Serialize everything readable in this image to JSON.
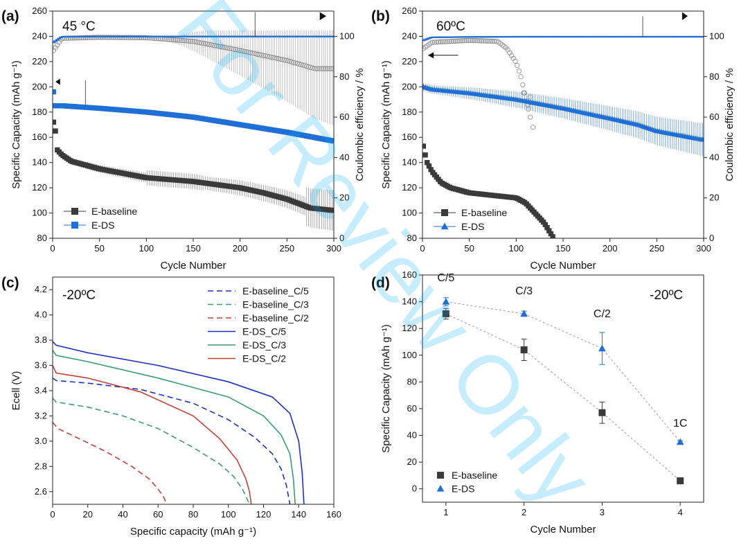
{
  "watermark": "For Review Only",
  "colors": {
    "baseline": "#3a3a3a",
    "ds": "#1f6fd6",
    "ds_light": "#5b9be8",
    "blue": "#1a2fc0",
    "green": "#3a9a70",
    "red": "#c0403a",
    "watermark": "#00aaff"
  },
  "chart_data": [
    {
      "panel": "(a)",
      "temperature": "45 °C",
      "type": "scatter",
      "xlabel": "Cycle Number",
      "ylabel": "Specific Capacity (mAh g⁻¹)",
      "ylabel_right": "Coulombic efficiency / %",
      "xlim": [
        0,
        300
      ],
      "ylim": [
        80,
        260
      ],
      "ylim_right": [
        0,
        112.5
      ],
      "xticks": [
        0,
        50,
        100,
        150,
        200,
        250,
        300
      ],
      "yticks": [
        80,
        100,
        120,
        140,
        160,
        180,
        200,
        220,
        240,
        260
      ],
      "yticks_right": [
        0,
        20,
        40,
        60,
        80,
        100
      ],
      "legend": "bottom-left",
      "series": [
        {
          "name": "E-baseline",
          "marker": "square",
          "color": "#3a3a3a",
          "capacity": {
            "x": [
              1,
              3,
              5,
              10,
              20,
              50,
              100,
              150,
              200,
              225,
              250,
              275,
              300
            ],
            "y": [
              172,
              165,
              150,
              146,
              141,
              135,
              128,
              125,
              120,
              116,
              111,
              104,
              102
            ]
          },
          "coulombic_efficiency": {
            "x": [
              1,
              10,
              50,
              100,
              150,
              200,
              250,
              280,
              300
            ],
            "y": [
              93,
              99,
              99.5,
              99.3,
              97.5,
              93,
              88,
              84,
              84
            ]
          }
        },
        {
          "name": "E-DS",
          "marker": "square",
          "color": "#1f6fd6",
          "capacity": {
            "x": [
              1,
              3,
              10,
              50,
              100,
              150,
              200,
              250,
              300
            ],
            "y": [
              196,
              185,
              185,
              183,
              180,
              176,
              170,
              164,
              157
            ]
          },
          "coulombic_efficiency": {
            "x": [
              1,
              10,
              50,
              100,
              150,
              200,
              250,
              300
            ],
            "y": [
              97,
              99.8,
              99.9,
              99.9,
              99.9,
              99.9,
              99.9,
              99.9
            ]
          }
        }
      ]
    },
    {
      "panel": "(b)",
      "temperature": "60ºC",
      "type": "scatter",
      "xlabel": "Cycle Number",
      "ylabel": "Specific Capacity (mAh g⁻¹)",
      "ylabel_right": "Coulombic efficiency / %",
      "xlim": [
        0,
        300
      ],
      "ylim": [
        80,
        260
      ],
      "ylim_right": [
        0,
        112.5
      ],
      "xticks": [
        0,
        50,
        100,
        150,
        200,
        250,
        300
      ],
      "yticks": [
        80,
        100,
        120,
        140,
        160,
        180,
        200,
        220,
        240,
        260
      ],
      "yticks_right": [
        0,
        20,
        40,
        60,
        80,
        100
      ],
      "legend": "bottom-left",
      "series": [
        {
          "name": "E-baseline",
          "marker": "square",
          "color": "#3a3a3a",
          "capacity": {
            "x": [
              1,
              3,
              5,
              10,
              20,
              30,
              50,
              75,
              100,
              110,
              120,
              130,
              140
            ],
            "y": [
              153,
              146,
              140,
              133,
              124,
              120,
              116,
              114,
              112,
              108,
              100,
              92,
              80
            ]
          },
          "coulombic_efficiency": {
            "x": [
              1,
              10,
              50,
              80,
              90,
              100,
              105,
              110,
              115
            ],
            "y": [
              94,
              97,
              98,
              97.5,
              94,
              87,
              80,
              70,
              60
            ]
          }
        },
        {
          "name": "E-DS",
          "marker": "triangle",
          "color": "#1f6fd6",
          "capacity": {
            "x": [
              1,
              10,
              50,
              100,
              150,
              200,
              230,
              250,
              300
            ],
            "y": [
              200,
              198,
              195,
              190,
              183,
              175,
              170,
              165,
              158
            ]
          },
          "coulombic_efficiency": {
            "x": [
              1,
              10,
              50,
              100,
              150,
              200,
              250,
              300
            ],
            "y": [
              98,
              99.5,
              99.7,
              99.8,
              99.8,
              99.8,
              99.8,
              99.8
            ]
          }
        }
      ]
    },
    {
      "panel": "(c)",
      "temperature": "-20ºC",
      "type": "line",
      "xlabel": "Specific capacity (mAh g⁻¹)",
      "ylabel": "Ecell  (V)",
      "xlim": [
        0,
        160
      ],
      "ylim": [
        2.5,
        4.3
      ],
      "xticks": [
        0,
        20,
        40,
        60,
        80,
        100,
        120,
        140,
        160
      ],
      "yticks": [
        2.6,
        2.8,
        3.0,
        3.2,
        3.4,
        3.6,
        3.8,
        4.0,
        4.2
      ],
      "legend": "top-right",
      "series": [
        {
          "name": "E-baseline_C/5",
          "color": "#1a2fc0",
          "dash": true,
          "x": [
            0,
            2,
            20,
            50,
            80,
            100,
            115,
            125,
            130,
            133,
            135
          ],
          "y": [
            3.5,
            3.48,
            3.46,
            3.41,
            3.3,
            3.17,
            3.03,
            2.9,
            2.78,
            2.65,
            2.5
          ]
        },
        {
          "name": "E-baseline_C/3",
          "color": "#3a9a70",
          "dash": true,
          "x": [
            0,
            2,
            20,
            40,
            60,
            80,
            95,
            103,
            108,
            112
          ],
          "y": [
            3.34,
            3.31,
            3.27,
            3.2,
            3.1,
            2.95,
            2.82,
            2.72,
            2.62,
            2.5
          ]
        },
        {
          "name": "E-baseline_C/2",
          "color": "#c0403a",
          "dash": true,
          "x": [
            0,
            3,
            15,
            30,
            45,
            55,
            60,
            63,
            65
          ],
          "y": [
            3.15,
            3.1,
            3.02,
            2.92,
            2.8,
            2.7,
            2.62,
            2.56,
            2.5
          ]
        },
        {
          "name": "E-DS_C/5",
          "color": "#1a2fc0",
          "dash": false,
          "x": [
            0,
            2,
            20,
            60,
            100,
            125,
            135,
            140,
            142,
            143
          ],
          "y": [
            3.79,
            3.76,
            3.7,
            3.6,
            3.47,
            3.35,
            3.22,
            3.0,
            2.75,
            2.5
          ]
        },
        {
          "name": "E-DS_C/3",
          "color": "#3a9a70",
          "dash": false,
          "x": [
            0,
            2,
            20,
            60,
            100,
            120,
            130,
            135,
            137,
            138
          ],
          "y": [
            3.72,
            3.68,
            3.63,
            3.5,
            3.35,
            3.2,
            3.05,
            2.9,
            2.7,
            2.5
          ]
        },
        {
          "name": "E-DS_C/2",
          "color": "#c0403a",
          "dash": false,
          "x": [
            0,
            2,
            20,
            50,
            80,
            95,
            105,
            110,
            112,
            113
          ],
          "y": [
            3.6,
            3.54,
            3.5,
            3.39,
            3.2,
            3.02,
            2.85,
            2.7,
            2.6,
            2.5
          ]
        }
      ]
    },
    {
      "panel": "(d)",
      "temperature": "-20ºC",
      "type": "scatter",
      "xlabel": "Cycle Number",
      "ylabel": "Specific Capacity (mAh g⁻¹)",
      "xlim": [
        0.7,
        4.3
      ],
      "ylim": [
        -10,
        160
      ],
      "xticks": [
        1,
        2,
        3,
        4
      ],
      "yticks": [
        0,
        20,
        40,
        60,
        80,
        100,
        120,
        140,
        160
      ],
      "legend": "bottom-left",
      "point_labels": [
        "C/5",
        "C/3",
        "C/2",
        "1C"
      ],
      "series": [
        {
          "name": "E-baseline",
          "marker": "square",
          "color": "#3a3a3a",
          "x": [
            1,
            2,
            3,
            4
          ],
          "y": [
            131,
            104,
            57,
            6
          ],
          "err": [
            4,
            8,
            8,
            1
          ]
        },
        {
          "name": "E-DS",
          "marker": "triangle",
          "color": "#1f6fd6",
          "x": [
            1,
            2,
            3,
            4
          ],
          "y": [
            140,
            131,
            105,
            35
          ],
          "err": [
            3,
            2,
            12,
            1
          ]
        }
      ]
    }
  ]
}
